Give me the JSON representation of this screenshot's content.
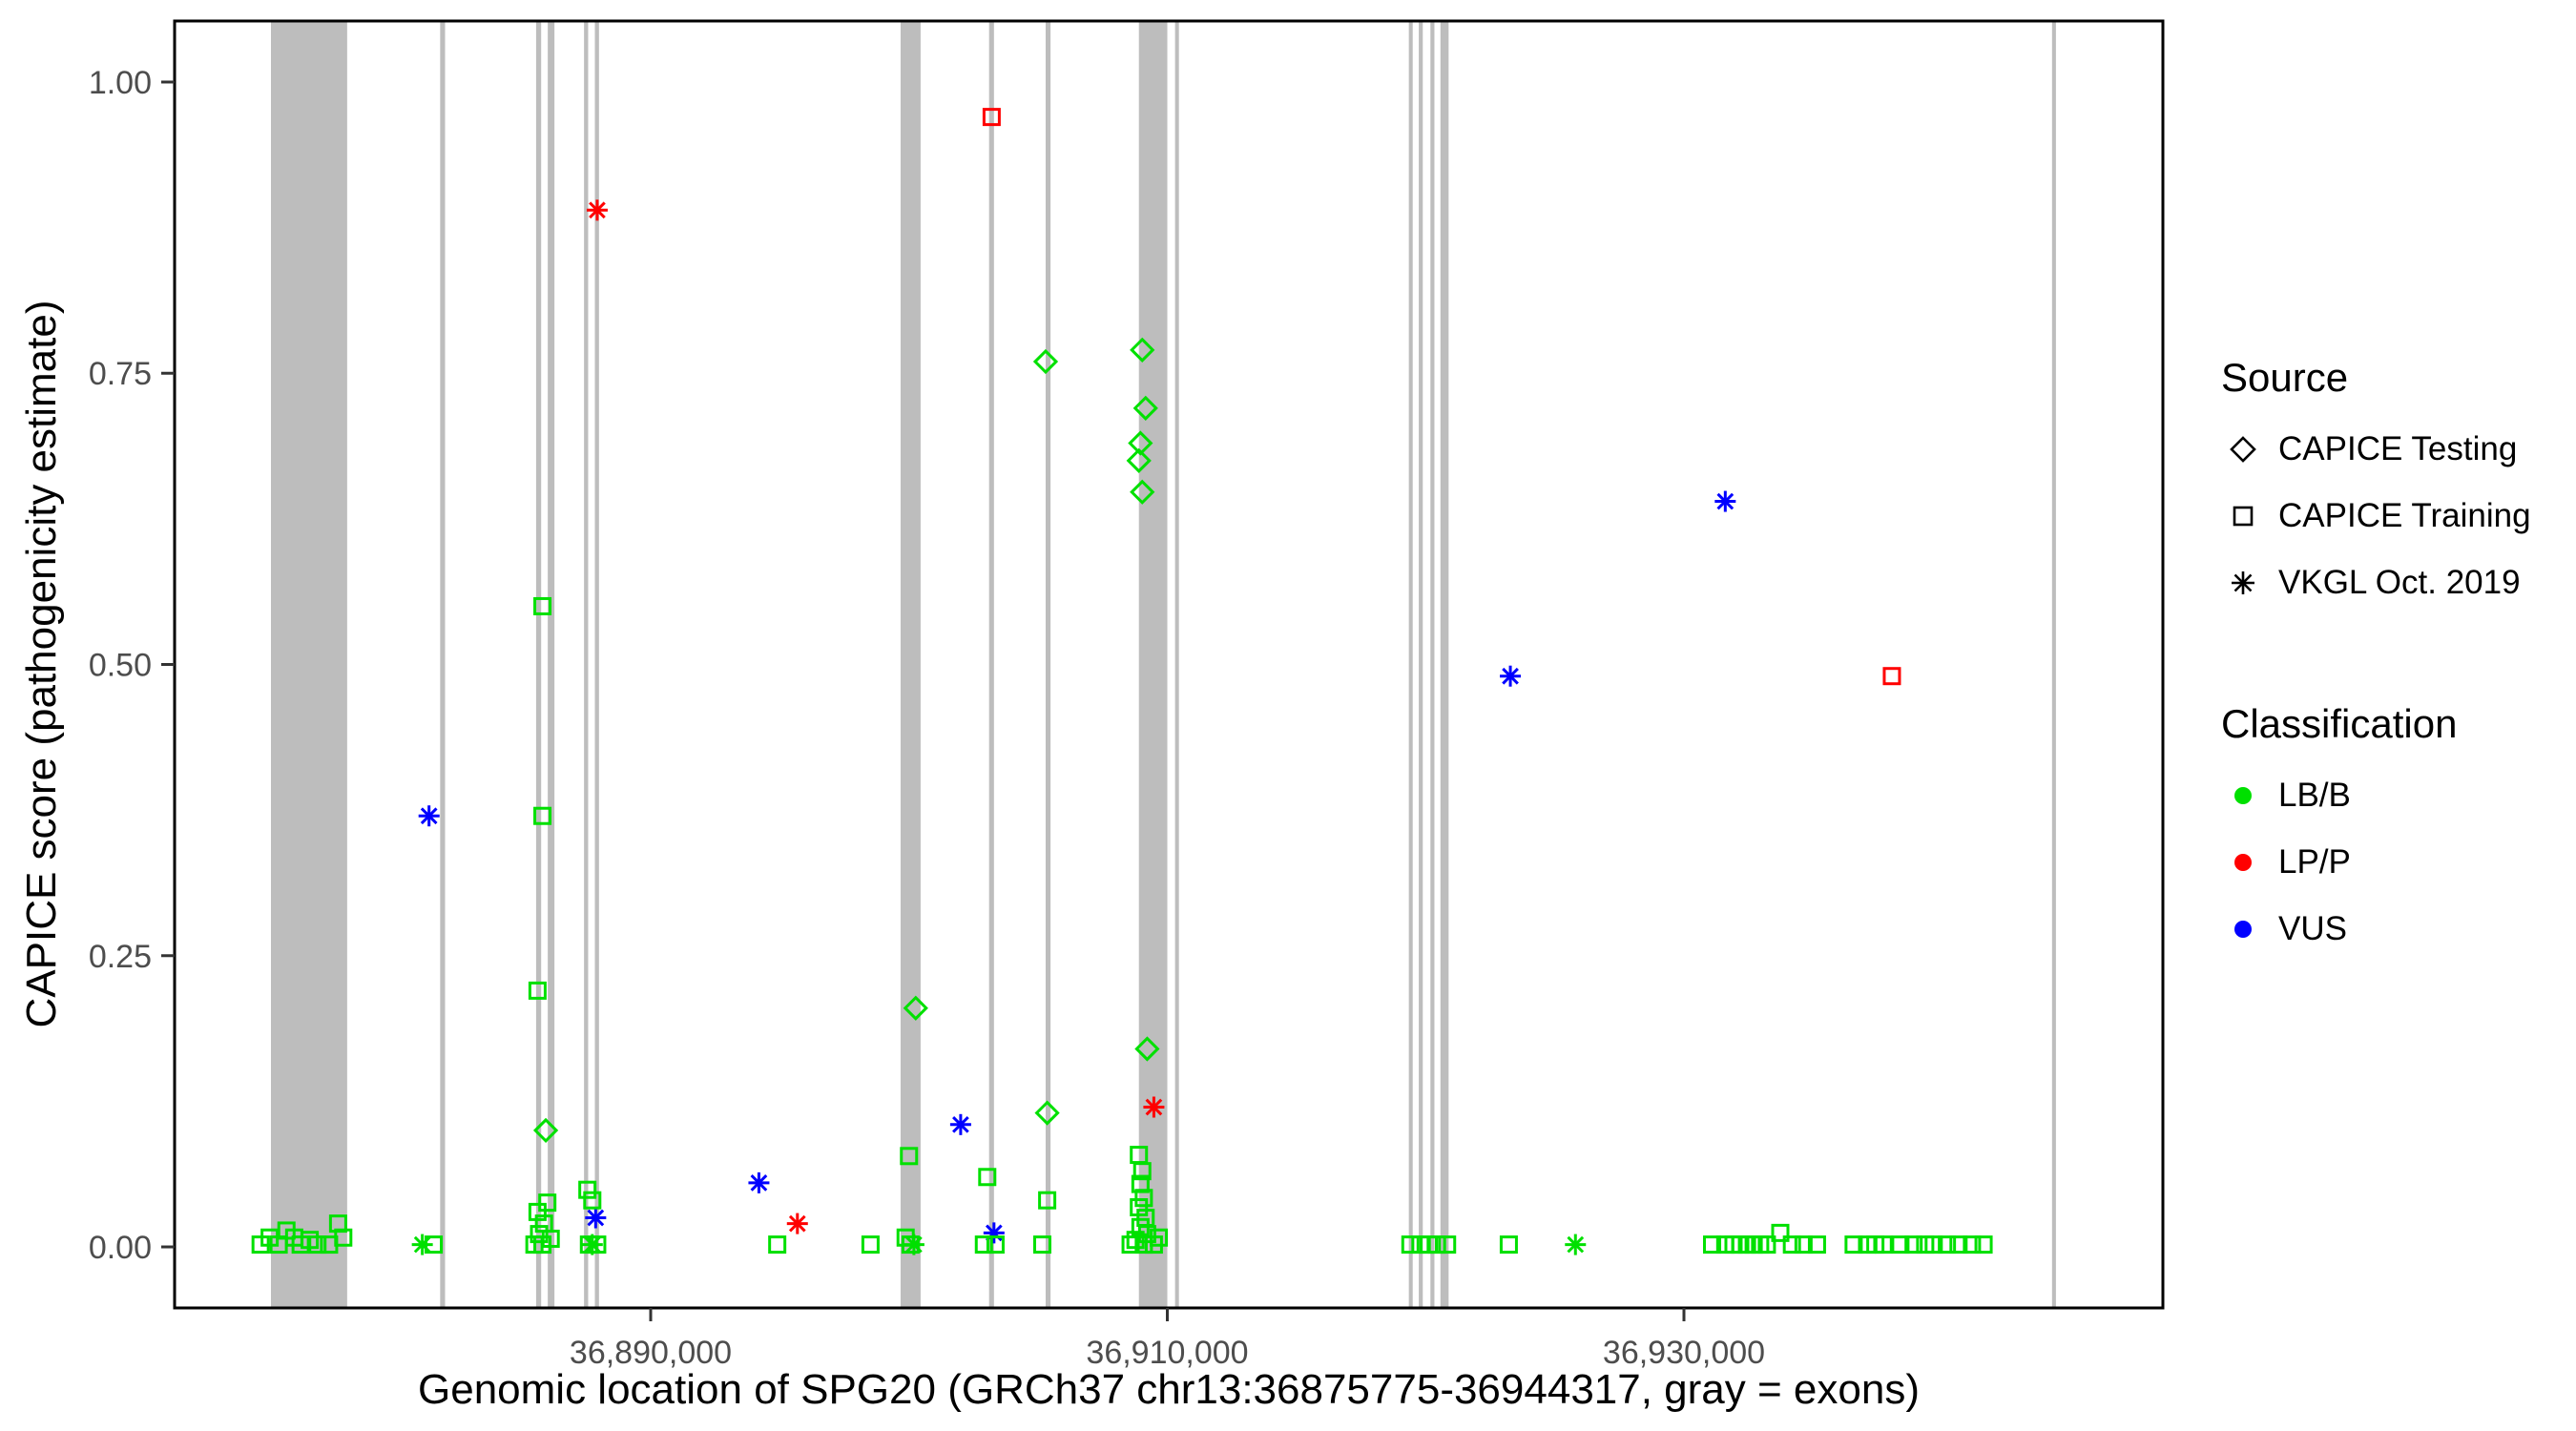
{
  "legend": {
    "source": {
      "title": "Source",
      "items": [
        {
          "label": "CAPICE Testing",
          "shape": "diamond"
        },
        {
          "label": "CAPICE Training",
          "shape": "square"
        },
        {
          "label": "VKGL Oct. 2019",
          "shape": "asterisk"
        }
      ]
    },
    "classification": {
      "title": "Classification",
      "items": [
        {
          "label": "LB/B",
          "color": "#00e000"
        },
        {
          "label": "LP/P",
          "color": "#ff0000"
        },
        {
          "label": "VUS",
          "color": "#0000ff"
        }
      ]
    }
  },
  "chart_data": {
    "type": "scatter",
    "title": "",
    "xlabel": "Genomic location of SPG20 (GRCh37 chr13:36875775-36944317, gray = exons)",
    "ylabel": "CAPICE score (pathogenicity estimate)",
    "x_domain": [
      36871570,
      36948541
    ],
    "y_domain": [
      -0.0524,
      1.0524
    ],
    "x_ticks": [
      {
        "value": 36890000,
        "label": "36,890,000"
      },
      {
        "value": 36910000,
        "label": "36,910,000"
      },
      {
        "value": 36930000,
        "label": "36,930,000"
      }
    ],
    "y_ticks": [
      {
        "value": 0.0,
        "label": "0.00"
      },
      {
        "value": 0.25,
        "label": "0.25"
      },
      {
        "value": 0.5,
        "label": "0.50"
      },
      {
        "value": 0.75,
        "label": "0.75"
      },
      {
        "value": 1.0,
        "label": "1.00"
      }
    ],
    "exon_color": "#bdbdbd",
    "exons": [
      [
        36875300,
        36878250
      ],
      [
        36881850,
        36882040
      ],
      [
        36885565,
        36885760
      ],
      [
        36886016,
        36886275
      ],
      [
        36887420,
        36887580
      ],
      [
        36887840,
        36888000
      ],
      [
        36899675,
        36900450
      ],
      [
        36903100,
        36903290
      ],
      [
        36905290,
        36905480
      ],
      [
        36908900,
        36910000
      ],
      [
        36910300,
        36910450
      ],
      [
        36919350,
        36919500
      ],
      [
        36919735,
        36919890
      ],
      [
        36920186,
        36920340
      ],
      [
        36920573,
        36920890
      ],
      [
        36944250,
        36944400
      ]
    ],
    "shape_map": {
      "testing": "diamond",
      "training": "square",
      "vkgl": "asterisk"
    },
    "source_labels": {
      "testing": "CAPICE Testing",
      "training": "CAPICE Training",
      "vkgl": "VKGL Oct. 2019"
    },
    "colors": {
      "LB/B": "#00e000",
      "LP/P": "#ff0000",
      "VUS": "#0000ff"
    },
    "points_format": [
      "genomic_position",
      "capice_score",
      "source",
      "classification"
    ],
    "points": [
      [
        36903200,
        0.97,
        "training",
        "LP/P"
      ],
      [
        36887930,
        0.89,
        "vkgl",
        "LP/P"
      ],
      [
        36905290,
        0.76,
        "testing",
        "LB/B"
      ],
      [
        36909030,
        0.77,
        "testing",
        "LB/B"
      ],
      [
        36909160,
        0.72,
        "testing",
        "LB/B"
      ],
      [
        36908960,
        0.69,
        "testing",
        "LB/B"
      ],
      [
        36908900,
        0.675,
        "testing",
        "LB/B"
      ],
      [
        36909030,
        0.648,
        "testing",
        "LB/B"
      ],
      [
        36931600,
        0.64,
        "vkgl",
        "VUS"
      ],
      [
        36923280,
        0.49,
        "vkgl",
        "VUS"
      ],
      [
        36938050,
        0.49,
        "training",
        "LP/P"
      ],
      [
        36881420,
        0.37,
        "vkgl",
        "VUS"
      ],
      [
        36885810,
        0.55,
        "training",
        "LB/B"
      ],
      [
        36885810,
        0.37,
        "training",
        "LB/B"
      ],
      [
        36885620,
        0.22,
        "training",
        "LB/B"
      ],
      [
        36885940,
        0.1,
        "testing",
        "LB/B"
      ],
      [
        36900260,
        0.205,
        "testing",
        "LB/B"
      ],
      [
        36902000,
        0.105,
        "vkgl",
        "VUS"
      ],
      [
        36905350,
        0.115,
        "testing",
        "LB/B"
      ],
      [
        36909220,
        0.17,
        "testing",
        "LB/B"
      ],
      [
        36909480,
        0.12,
        "vkgl",
        "LP/P"
      ],
      [
        36894190,
        0.055,
        "vkgl",
        "VUS"
      ],
      [
        36895680,
        0.02,
        "vkgl",
        "LP/P"
      ],
      [
        36887870,
        0.025,
        "vkgl",
        "VUS"
      ],
      [
        36903290,
        0.012,
        "vkgl",
        "VUS"
      ],
      [
        36874900,
        0.002,
        "training",
        "LB/B"
      ],
      [
        36875250,
        0.008,
        "training",
        "LB/B"
      ],
      [
        36875600,
        0.002,
        "training",
        "LB/B"
      ],
      [
        36875900,
        0.014,
        "training",
        "LB/B"
      ],
      [
        36876200,
        0.008,
        "training",
        "LB/B"
      ],
      [
        36876450,
        0.002,
        "training",
        "LB/B"
      ],
      [
        36876800,
        0.006,
        "training",
        "LB/B"
      ],
      [
        36877100,
        0.002,
        "training",
        "LB/B"
      ],
      [
        36877550,
        0.002,
        "training",
        "LB/B"
      ],
      [
        36877900,
        0.02,
        "training",
        "LB/B"
      ],
      [
        36878100,
        0.008,
        "training",
        "LB/B"
      ],
      [
        36881160,
        0.002,
        "vkgl",
        "LB/B"
      ],
      [
        36881600,
        0.002,
        "training",
        "LB/B"
      ],
      [
        36885500,
        0.002,
        "training",
        "LB/B"
      ],
      [
        36885680,
        0.011,
        "training",
        "LB/B"
      ],
      [
        36885870,
        0.02,
        "training",
        "LB/B"
      ],
      [
        36885620,
        0.03,
        "training",
        "LB/B"
      ],
      [
        36886000,
        0.038,
        "training",
        "LB/B"
      ],
      [
        36885810,
        0.002,
        "training",
        "LB/B"
      ],
      [
        36886130,
        0.007,
        "training",
        "LB/B"
      ],
      [
        36887550,
        0.049,
        "training",
        "LB/B"
      ],
      [
        36887740,
        0.04,
        "training",
        "LB/B"
      ],
      [
        36887610,
        0.002,
        "training",
        "LB/B"
      ],
      [
        36887930,
        0.002,
        "training",
        "LB/B"
      ],
      [
        36887740,
        0.002,
        "vkgl",
        "LB/B"
      ],
      [
        36894900,
        0.002,
        "training",
        "LB/B"
      ],
      [
        36898510,
        0.002,
        "training",
        "LB/B"
      ],
      [
        36899870,
        0.008,
        "training",
        "LB/B"
      ],
      [
        36900060,
        0.002,
        "training",
        "LB/B"
      ],
      [
        36900190,
        0.002,
        "vkgl",
        "LB/B"
      ],
      [
        36900000,
        0.078,
        "training",
        "LB/B"
      ],
      [
        36903030,
        0.06,
        "training",
        "LB/B"
      ],
      [
        36902900,
        0.002,
        "training",
        "LB/B"
      ],
      [
        36903350,
        0.002,
        "training",
        "LB/B"
      ],
      [
        36905350,
        0.04,
        "training",
        "LB/B"
      ],
      [
        36905160,
        0.002,
        "training",
        "LB/B"
      ],
      [
        36908900,
        0.079,
        "training",
        "LB/B"
      ],
      [
        36909030,
        0.065,
        "training",
        "LB/B"
      ],
      [
        36908960,
        0.054,
        "training",
        "LB/B"
      ],
      [
        36909090,
        0.042,
        "training",
        "LB/B"
      ],
      [
        36908900,
        0.034,
        "training",
        "LB/B"
      ],
      [
        36909160,
        0.025,
        "training",
        "LB/B"
      ],
      [
        36908960,
        0.017,
        "training",
        "LB/B"
      ],
      [
        36909220,
        0.011,
        "training",
        "LB/B"
      ],
      [
        36908770,
        0.006,
        "training",
        "LB/B"
      ],
      [
        36909090,
        0.002,
        "training",
        "LB/B"
      ],
      [
        36908580,
        0.002,
        "training",
        "LB/B"
      ],
      [
        36909480,
        0.002,
        "training",
        "LB/B"
      ],
      [
        36909670,
        0.008,
        "training",
        "LB/B"
      ],
      [
        36919410,
        0.002,
        "training",
        "LB/B"
      ],
      [
        36919800,
        0.002,
        "training",
        "LB/B"
      ],
      [
        36920120,
        0.002,
        "training",
        "LB/B"
      ],
      [
        36920440,
        0.002,
        "training",
        "LB/B"
      ],
      [
        36920830,
        0.002,
        "training",
        "LB/B"
      ],
      [
        36923220,
        0.002,
        "training",
        "LB/B"
      ],
      [
        36925800,
        0.002,
        "vkgl",
        "LB/B"
      ],
      [
        36931090,
        0.002,
        "training",
        "LB/B"
      ],
      [
        36931600,
        0.002,
        "training",
        "LB/B"
      ],
      [
        36931920,
        0.002,
        "training",
        "LB/B"
      ],
      [
        36932180,
        0.002,
        "training",
        "LB/B"
      ],
      [
        36932440,
        0.002,
        "training",
        "LB/B"
      ],
      [
        36932700,
        0.002,
        "training",
        "LB/B"
      ],
      [
        36932950,
        0.002,
        "training",
        "LB/B"
      ],
      [
        36933210,
        0.002,
        "training",
        "LB/B"
      ],
      [
        36933730,
        0.012,
        "training",
        "LB/B"
      ],
      [
        36934180,
        0.002,
        "training",
        "LB/B"
      ],
      [
        36934630,
        0.002,
        "training",
        "LB/B"
      ],
      [
        36935150,
        0.002,
        "training",
        "LB/B"
      ],
      [
        36936570,
        0.002,
        "training",
        "LB/B"
      ],
      [
        36937090,
        0.002,
        "training",
        "LB/B"
      ],
      [
        36937410,
        0.002,
        "training",
        "LB/B"
      ],
      [
        36937730,
        0.002,
        "training",
        "LB/B"
      ],
      [
        36938380,
        0.002,
        "training",
        "LB/B"
      ],
      [
        36938890,
        0.002,
        "training",
        "LB/B"
      ],
      [
        36939340,
        0.002,
        "training",
        "LB/B"
      ],
      [
        36939670,
        0.002,
        "training",
        "LB/B"
      ],
      [
        36940180,
        0.002,
        "training",
        "LB/B"
      ],
      [
        36940630,
        0.002,
        "training",
        "LB/B"
      ],
      [
        36941150,
        0.002,
        "training",
        "LB/B"
      ],
      [
        36941600,
        0.002,
        "training",
        "LB/B"
      ]
    ]
  }
}
